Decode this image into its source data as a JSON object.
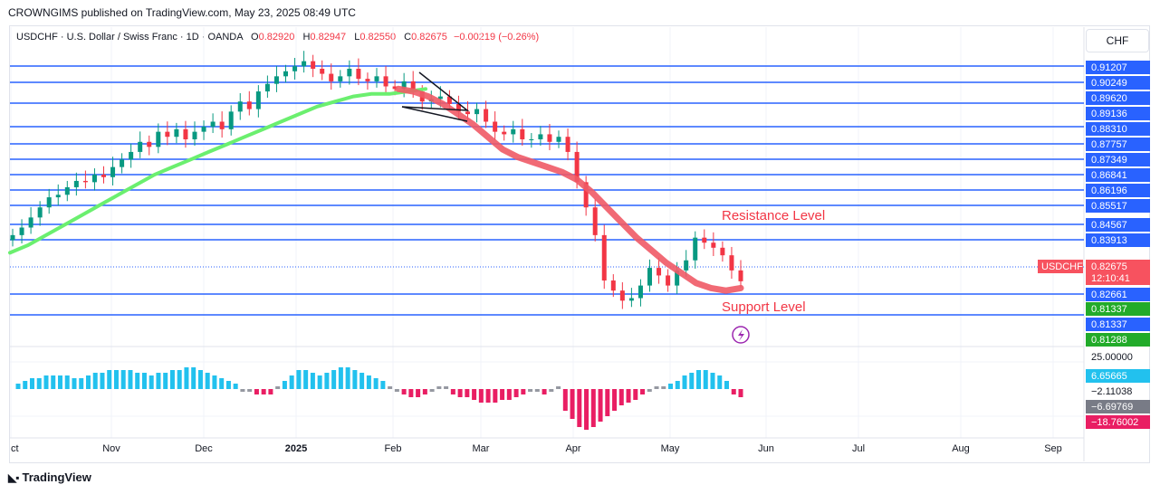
{
  "header": {
    "publisher": "CROWNGIMS published on TradingView.com, May 23, 2025 08:49 UTC"
  },
  "legend": {
    "symbol": "USDCHF · U.S. Dollar / Swiss Franc · 1D · OANDA",
    "open_label": "O",
    "open": "0.82920",
    "high_label": "H",
    "high": "0.82947",
    "low_label": "L",
    "low": "0.82550",
    "close_label": "C",
    "close": "0.82675",
    "change": "−0.00219 (−0.26%)"
  },
  "currency_button": "CHF",
  "footer": {
    "brand": "TradingView",
    "logo_icon": "tradingview-logo-icon"
  },
  "chart_data": {
    "type": "line",
    "symbol": "USDCHF",
    "x_ticks": [
      "ct",
      "Nov",
      "Dec",
      "2025",
      "Feb",
      "Mar",
      "Apr",
      "May",
      "Jun",
      "Jul",
      "Aug",
      "Sep"
    ],
    "horizontal_levels": [
      {
        "price": 0.91207,
        "label": "0.91207"
      },
      {
        "price": 0.90249,
        "label": "0.90249"
      },
      {
        "price": 0.8962,
        "label": "0.89620"
      },
      {
        "price": 0.89136,
        "label": "0.89136"
      },
      {
        "price": 0.8831,
        "label": "0.88310"
      },
      {
        "price": 0.87757,
        "label": "0.87757"
      },
      {
        "price": 0.87349,
        "label": "0.87349"
      },
      {
        "price": 0.86841,
        "label": "0.86841"
      },
      {
        "price": 0.86196,
        "label": "0.86196"
      },
      {
        "price": 0.85517,
        "label": "0.85517"
      },
      {
        "price": 0.84567,
        "label": "0.84567"
      },
      {
        "price": 0.83913,
        "label": "0.83913"
      },
      {
        "price": 0.82661,
        "label": "0.82661"
      },
      {
        "price": 0.81337,
        "label": "0.81337"
      }
    ],
    "price_tags": [
      {
        "label": "0.81337",
        "color": "#22ab2a"
      },
      {
        "label": "0.81337",
        "color": "#2962ff"
      },
      {
        "label": "0.81288",
        "color": "#22ab2a"
      }
    ],
    "last_price": {
      "name": "USDCHF",
      "value": "0.82675",
      "countdown": "12:10:41",
      "color": "#f7525f"
    },
    "annotations": {
      "resistance": "Resistance Level",
      "support": "Support Level"
    },
    "close_series": [
      0.845,
      0.848,
      0.852,
      0.856,
      0.86,
      0.861,
      0.864,
      0.8665,
      0.866,
      0.869,
      0.868,
      0.872,
      0.875,
      0.878,
      0.882,
      0.88,
      0.886,
      0.884,
      0.887,
      0.883,
      0.886,
      0.888,
      0.89,
      0.887,
      0.894,
      0.898,
      0.895,
      0.902,
      0.905,
      0.908,
      0.91,
      0.912,
      0.914,
      0.911,
      0.909,
      0.906,
      0.908,
      0.911,
      0.907,
      0.906,
      0.908,
      0.904,
      0.903,
      0.906,
      0.902,
      0.898,
      0.899,
      0.9,
      0.897,
      0.894,
      0.893,
      0.895,
      0.89,
      0.886,
      0.885,
      0.887,
      0.883,
      0.883,
      0.885,
      0.882,
      0.884,
      0.878,
      0.866,
      0.856,
      0.845,
      0.827,
      0.823,
      0.819,
      0.82,
      0.825,
      0.832,
      0.829,
      0.825,
      0.831,
      0.835,
      0.844,
      0.842,
      0.84,
      0.837,
      0.831,
      0.8267
    ],
    "ma_fast": [
      0.838,
      0.841,
      0.845,
      0.849,
      0.853,
      0.857,
      0.861,
      0.865,
      0.869,
      0.872,
      0.875,
      0.878,
      0.881,
      0.884,
      0.887,
      0.89,
      0.893,
      0.896,
      0.898,
      0.9,
      0.901,
      0.901,
      0.902,
      0.903
    ],
    "ma_slow": [
      0.903,
      0.902,
      0.9,
      0.897,
      0.893,
      0.889,
      0.884,
      0.879,
      0.876,
      0.874,
      0.872,
      0.87,
      0.867,
      0.862,
      0.856,
      0.85,
      0.844,
      0.839,
      0.834,
      0.83,
      0.826,
      0.824,
      0.823,
      0.824
    ],
    "oscillator_levels": [
      {
        "label": "25.00000",
        "color": ""
      },
      {
        "label": "6.65665",
        "color": "#22c1ee"
      },
      {
        "label": "−2.11038",
        "color": ""
      },
      {
        "label": "−6.69769",
        "color": "#787b86"
      },
      {
        "label": "−18.76002",
        "color": "#e91e63"
      }
    ],
    "oscillator_histogram": [
      2,
      3,
      4,
      4,
      5,
      5,
      5,
      5,
      4,
      4,
      5,
      6,
      6,
      7,
      7,
      7,
      7,
      6,
      6,
      5,
      6,
      6,
      7,
      7,
      8,
      8,
      7,
      6,
      5,
      4,
      3,
      2,
      -1,
      -1,
      -2,
      -2,
      -2,
      1,
      3,
      5,
      7,
      7,
      6,
      5,
      6,
      7,
      8,
      8,
      7,
      6,
      5,
      4,
      3,
      1,
      -1,
      -2,
      -3,
      -3,
      -2,
      -1,
      1,
      1,
      -2,
      -3,
      -3,
      -4,
      -5,
      -5,
      -5,
      -4,
      -4,
      -3,
      -2,
      -1,
      -1,
      -2,
      -1,
      1,
      -8,
      -11,
      -14,
      -15,
      -14,
      -12,
      -10,
      -8,
      -6,
      -5,
      -4,
      -2,
      -1,
      1,
      1,
      2,
      3,
      5,
      6,
      7,
      7,
      6,
      5,
      3,
      -2,
      -3
    ],
    "grid": true,
    "legend_position": "top-left"
  }
}
